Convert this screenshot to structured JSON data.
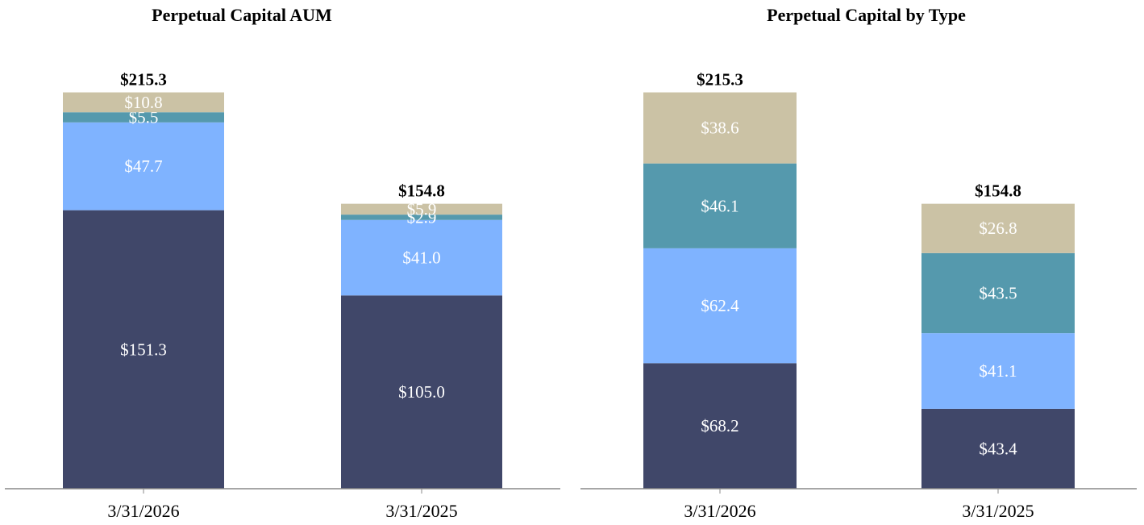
{
  "colors": {
    "segment_1": "#404769",
    "segment_2": "#7fb3ff",
    "segment_3": "#5599ad",
    "segment_4": "#cbc2a5",
    "axis": "#888888"
  },
  "chart_data": [
    {
      "type": "bar",
      "stacked": true,
      "title": "Perpetual Capital AUM",
      "categories": [
        "3/31/2026",
        "3/31/2025"
      ],
      "series": [
        {
          "values": [
            151.3,
            105.0
          ],
          "labels": [
            "$151.3",
            "$105.0"
          ]
        },
        {
          "values": [
            47.7,
            41.0
          ],
          "labels": [
            "$47.7",
            "$41.0"
          ]
        },
        {
          "values": [
            5.5,
            2.9
          ],
          "labels": [
            "$5.5",
            "$2.9"
          ]
        },
        {
          "values": [
            10.8,
            5.9
          ],
          "labels": [
            "$10.8",
            "$5.9"
          ]
        }
      ],
      "totals": [
        215.3,
        154.8
      ],
      "total_labels": [
        "$215.3",
        "$154.8"
      ],
      "ylim": [
        0,
        230
      ],
      "grid": false,
      "legend": "none"
    },
    {
      "type": "bar",
      "stacked": true,
      "title": "Perpetual Capital by Type",
      "categories": [
        "3/31/2026",
        "3/31/2025"
      ],
      "series": [
        {
          "values": [
            68.2,
            43.4
          ],
          "labels": [
            "$68.2",
            "$43.4"
          ]
        },
        {
          "values": [
            62.4,
            41.1
          ],
          "labels": [
            "$62.4",
            "$41.1"
          ]
        },
        {
          "values": [
            46.1,
            43.5
          ],
          "labels": [
            "$46.1",
            "$43.5"
          ]
        },
        {
          "values": [
            38.6,
            26.8
          ],
          "labels": [
            "$38.6",
            "$26.8"
          ]
        }
      ],
      "totals": [
        215.3,
        154.8
      ],
      "total_labels": [
        "$215.3",
        "$154.8"
      ],
      "ylim": [
        0,
        230
      ],
      "grid": false,
      "legend": "none"
    }
  ]
}
